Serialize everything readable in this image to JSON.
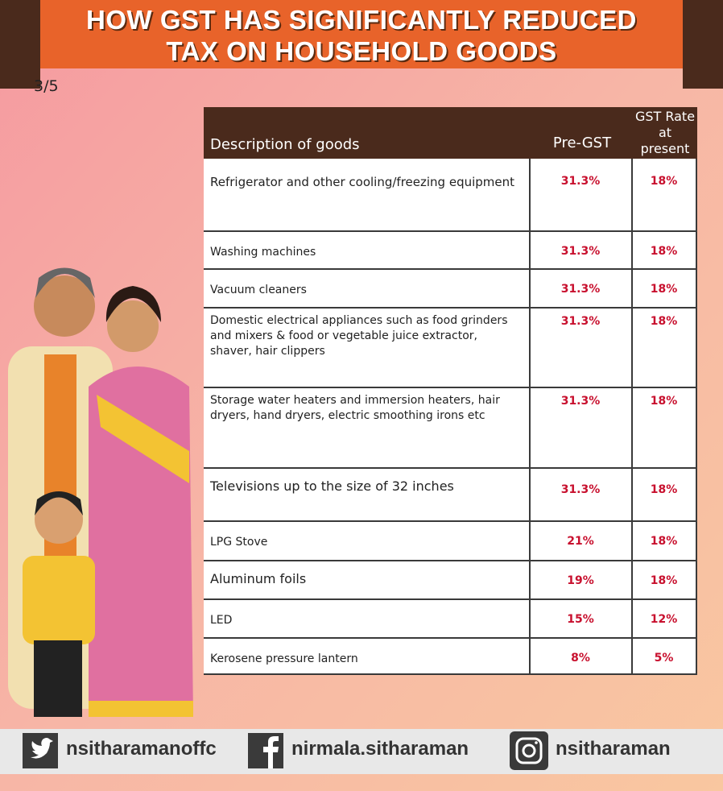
{
  "header": {
    "title": [
      "HOW GST HAS SIGNIFICANTLY REDUCED",
      "TAX ON HOUSEHOLD GOODS"
    ],
    "page": "3/5"
  },
  "table": {
    "columns": [
      "Description of goods",
      "Pre-GST",
      "GST Rate at present"
    ],
    "rows": [
      [
        "Refrigerator and other cooling/freezing equipment",
        "31.3%",
        "18%"
      ],
      [
        "Washing machines",
        "31.3%",
        "18%"
      ],
      [
        "Vacuum cleaners",
        "31.3%",
        "18%"
      ],
      [
        "Domestic electrical appliances  such as food grinders and mixers & food or vegetable juice extractor, shaver, hair clippers",
        "31.3%",
        "18%"
      ],
      [
        "Storage water heaters and immersion heaters, hair dryers,  hand dryers, electric smoothing irons etc",
        "31.3%",
        "18%"
      ],
      [
        "Televisions up to the size of 32 inches",
        "31.3%",
        "18%"
      ],
      [
        "LPG Stove",
        "21%",
        "18%"
      ],
      [
        "Aluminum foils",
        "19%",
        "18%"
      ],
      [
        "LED",
        "15%",
        "12%"
      ],
      [
        "Kerosene pressure lantern",
        "8%",
        "5%"
      ]
    ]
  },
  "footer": {
    "twitter": "nsitharamanoffc",
    "facebook": "nirmala.sitharaman",
    "instagram": "nsitharaman"
  }
}
